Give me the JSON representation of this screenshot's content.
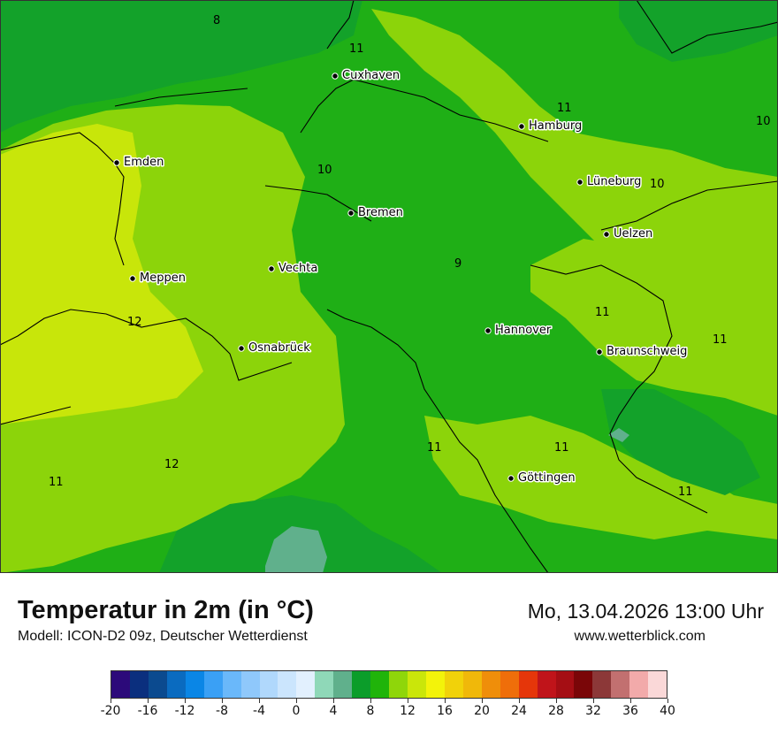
{
  "map": {
    "cities": [
      {
        "name": "Cuxhaven"
      },
      {
        "name": "Hamburg"
      },
      {
        "name": "Emden"
      },
      {
        "name": "Lüneburg"
      },
      {
        "name": "Bremen"
      },
      {
        "name": "Uelzen"
      },
      {
        "name": "Vechta"
      },
      {
        "name": "Meppen"
      },
      {
        "name": "Hannover"
      },
      {
        "name": "Osnabrück"
      },
      {
        "name": "Braunschweig"
      },
      {
        "name": "Göttingen"
      }
    ],
    "contour_labels": [
      "8",
      "11",
      "11",
      "10",
      "10",
      "10",
      "9",
      "11",
      "12",
      "11",
      "11",
      "11",
      "12",
      "11",
      "11"
    ]
  },
  "footer": {
    "title": "Temperatur in 2m (in °C)",
    "subtitle": "Modell: ICON-D2 09z, Deutscher Wetterdienst",
    "datetime": "Mo, 13.04.2026 13:00 Uhr",
    "website": "www.wetterblick.com"
  },
  "legend": {
    "colors": [
      "#2c0a7a",
      "#0b2f7e",
      "#0b4a8f",
      "#0a6bc0",
      "#0a86e6",
      "#3aa0f5",
      "#6ab8fa",
      "#8fc8fb",
      "#b0d8fc",
      "#cbe5fd",
      "#e2f0fe",
      "#8fd8b8",
      "#60b08c",
      "#0b9d2a",
      "#20b40a",
      "#8fd60a",
      "#cae60a",
      "#f3f30a",
      "#f1d20a",
      "#f0b80a",
      "#ef8e0a",
      "#ef6e0a",
      "#e5360a",
      "#c0141a",
      "#a50e14",
      "#7a0608",
      "#8c3838",
      "#c27070",
      "#f2aaaa",
      "#fad8d8"
    ],
    "tick_labels": [
      "-20",
      "-16",
      "-12",
      "-8",
      "-4",
      "0",
      "4",
      "8",
      "12",
      "16",
      "20",
      "24",
      "28",
      "32",
      "36",
      "40"
    ]
  }
}
